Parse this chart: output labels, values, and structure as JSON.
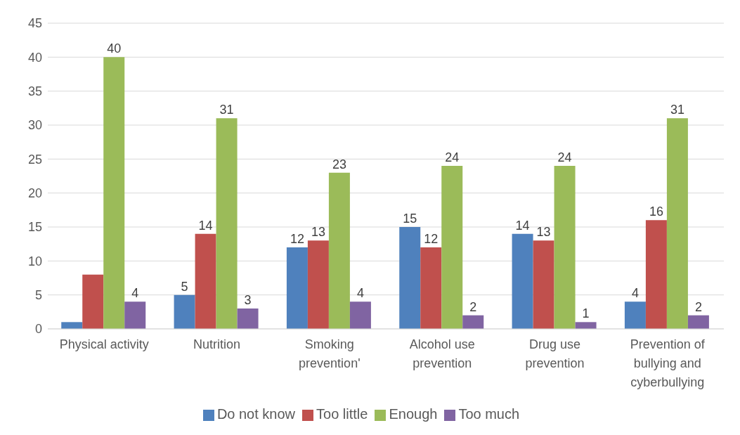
{
  "chart_data": {
    "type": "bar",
    "categories": [
      "Physical activity",
      "Nutrition",
      "Smoking prevention'",
      "Alcohol use prevention",
      "Drug use prevention",
      "Prevention of bullying and cyberbullying"
    ],
    "series": [
      {
        "name": "Do not know",
        "color": "#4f81bd",
        "values": [
          1,
          5,
          12,
          15,
          14,
          4
        ],
        "value_labels": [
          null,
          "5",
          "12",
          "15",
          "14",
          "4"
        ]
      },
      {
        "name": "Too little",
        "color": "#c0504d",
        "values": [
          8,
          14,
          13,
          12,
          13,
          16
        ],
        "value_labels": [
          null,
          "14",
          "13",
          "12",
          "13",
          "16"
        ]
      },
      {
        "name": "Enough",
        "color": "#9bbb59",
        "values": [
          40,
          31,
          23,
          24,
          24,
          31
        ],
        "value_labels": [
          "40",
          "31",
          "23",
          "24",
          "24",
          "31"
        ]
      },
      {
        "name": "Too much",
        "color": "#8064a2",
        "values": [
          4,
          3,
          4,
          2,
          1,
          2
        ],
        "value_labels": [
          "4",
          "3",
          "4",
          "2",
          "1",
          "2"
        ]
      }
    ],
    "ylim": [
      0,
      45
    ],
    "yticks": [
      0,
      5,
      10,
      15,
      20,
      25,
      30,
      35,
      40,
      45
    ],
    "grid": "y",
    "legend": "bottom"
  }
}
